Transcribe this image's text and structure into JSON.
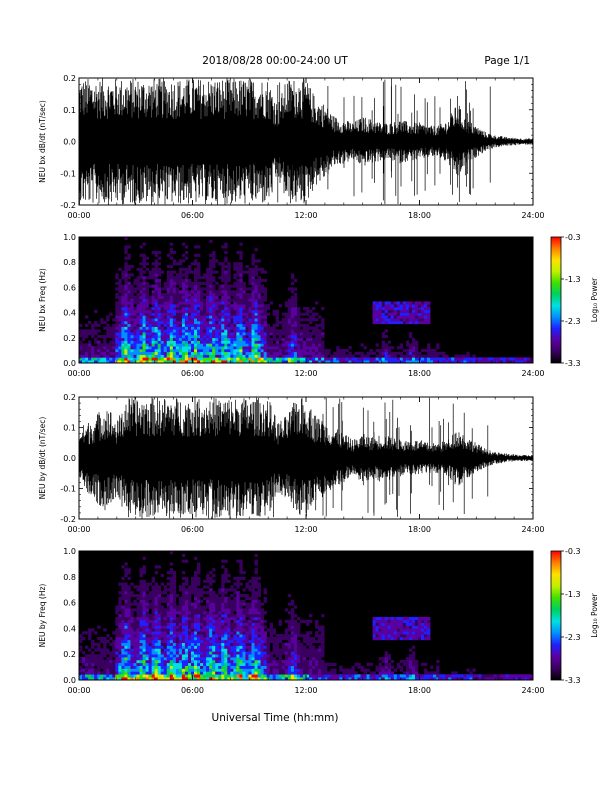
{
  "header": {
    "title": "2018/08/28  00:00-24:00 UT",
    "page": "Page 1/1"
  },
  "footer": {
    "xlabel": "Universal Time (hh:mm)"
  },
  "colors": {
    "trace": "#000000",
    "background": "#ffffff",
    "colormap": [
      "#000000",
      "#3a0060",
      "#5a00a0",
      "#2020ff",
      "#0090ff",
      "#00e0e0",
      "#00d060",
      "#40e000",
      "#c0f000",
      "#ffe000",
      "#ff8000",
      "#ff0000"
    ]
  },
  "chart_data": [
    {
      "type": "line",
      "ylabel": "NEU bx dB/dt (nT/sec)",
      "xlim": [
        0,
        24
      ],
      "ylim": [
        -0.2,
        0.2
      ],
      "xticks": [
        "00:00",
        "06:00",
        "12:00",
        "18:00",
        "24:00"
      ],
      "yticks": [
        "-0.2",
        "-0.1",
        "0.0",
        "0.1",
        "0.2"
      ],
      "envelope": {
        "x": [
          0,
          0.5,
          1,
          1.5,
          2,
          2.5,
          3,
          3.5,
          4,
          4.5,
          5,
          5.5,
          6,
          6.5,
          7,
          7.5,
          8,
          8.5,
          9,
          9.5,
          10,
          10.5,
          11,
          11.5,
          12,
          12.5,
          13,
          13.5,
          14,
          14.5,
          15,
          15.5,
          16,
          16.5,
          17,
          17.5,
          18,
          18.5,
          19,
          19.5,
          20,
          20.5,
          21,
          21.5,
          22,
          22.5,
          23,
          23.5,
          24
        ],
        "amplitude": [
          0.2,
          0.2,
          0.2,
          0.2,
          0.2,
          0.2,
          0.2,
          0.2,
          0.2,
          0.2,
          0.2,
          0.2,
          0.2,
          0.2,
          0.2,
          0.2,
          0.2,
          0.2,
          0.2,
          0.2,
          0.2,
          0.12,
          0.2,
          0.2,
          0.2,
          0.14,
          0.12,
          0.08,
          0.07,
          0.06,
          0.08,
          0.07,
          0.06,
          0.06,
          0.07,
          0.06,
          0.06,
          0.05,
          0.05,
          0.07,
          0.12,
          0.07,
          0.05,
          0.03,
          0.02,
          0.015,
          0.012,
          0.01,
          0.01
        ]
      }
    },
    {
      "type": "heatmap",
      "ylabel": "NEU bx Freq (Hz)",
      "xlim": [
        0,
        24
      ],
      "ylim": [
        0,
        1.0
      ],
      "xticks": [
        "00:00",
        "06:00",
        "12:00",
        "18:00",
        "24:00"
      ],
      "yticks": [
        "0.0",
        "0.2",
        "0.4",
        "0.6",
        "0.8",
        "1.0"
      ],
      "colorbar": {
        "label": "Log₁₀ Power",
        "range": [
          -3.3,
          -0.3
        ],
        "ticks": [
          "-0.3",
          "-1.3",
          "-2.3",
          "-3.3"
        ]
      }
    },
    {
      "type": "line",
      "ylabel": "NEU by dB/dt (nT/sec)",
      "xlim": [
        0,
        24
      ],
      "ylim": [
        -0.2,
        0.2
      ],
      "xticks": [
        "00:00",
        "06:00",
        "12:00",
        "18:00",
        "24:00"
      ],
      "yticks": [
        "-0.2",
        "-0.1",
        "0.0",
        "0.1",
        "0.2"
      ],
      "envelope": {
        "x": [
          0,
          0.5,
          1,
          1.5,
          2,
          2.5,
          3,
          3.5,
          4,
          4.5,
          5,
          5.5,
          6,
          6.5,
          7,
          7.5,
          8,
          8.5,
          9,
          9.5,
          10,
          10.5,
          11,
          11.5,
          12,
          12.5,
          13,
          13.5,
          14,
          14.5,
          15,
          15.5,
          16,
          16.5,
          17,
          17.5,
          18,
          18.5,
          19,
          19.5,
          20,
          20.5,
          21,
          21.5,
          22,
          22.5,
          23,
          23.5,
          24
        ],
        "amplitude": [
          0.1,
          0.12,
          0.15,
          0.18,
          0.12,
          0.2,
          0.2,
          0.2,
          0.2,
          0.2,
          0.2,
          0.2,
          0.2,
          0.2,
          0.2,
          0.2,
          0.2,
          0.2,
          0.2,
          0.2,
          0.2,
          0.12,
          0.14,
          0.2,
          0.2,
          0.14,
          0.12,
          0.1,
          0.08,
          0.06,
          0.08,
          0.07,
          0.08,
          0.07,
          0.06,
          0.06,
          0.06,
          0.05,
          0.05,
          0.06,
          0.1,
          0.07,
          0.05,
          0.03,
          0.02,
          0.015,
          0.012,
          0.01,
          0.01
        ]
      }
    },
    {
      "type": "heatmap",
      "ylabel": "NEU by Freq (Hz)",
      "xlim": [
        0,
        24
      ],
      "ylim": [
        0,
        1.0
      ],
      "xticks": [
        "00:00",
        "06:00",
        "12:00",
        "18:00",
        "24:00"
      ],
      "yticks": [
        "0.0",
        "0.2",
        "0.4",
        "0.6",
        "0.8",
        "1.0"
      ],
      "colorbar": {
        "label": "Log₁₀ Power",
        "range": [
          -3.3,
          -0.3
        ],
        "ticks": [
          "-0.3",
          "-1.3",
          "-2.3",
          "-3.3"
        ]
      }
    }
  ]
}
